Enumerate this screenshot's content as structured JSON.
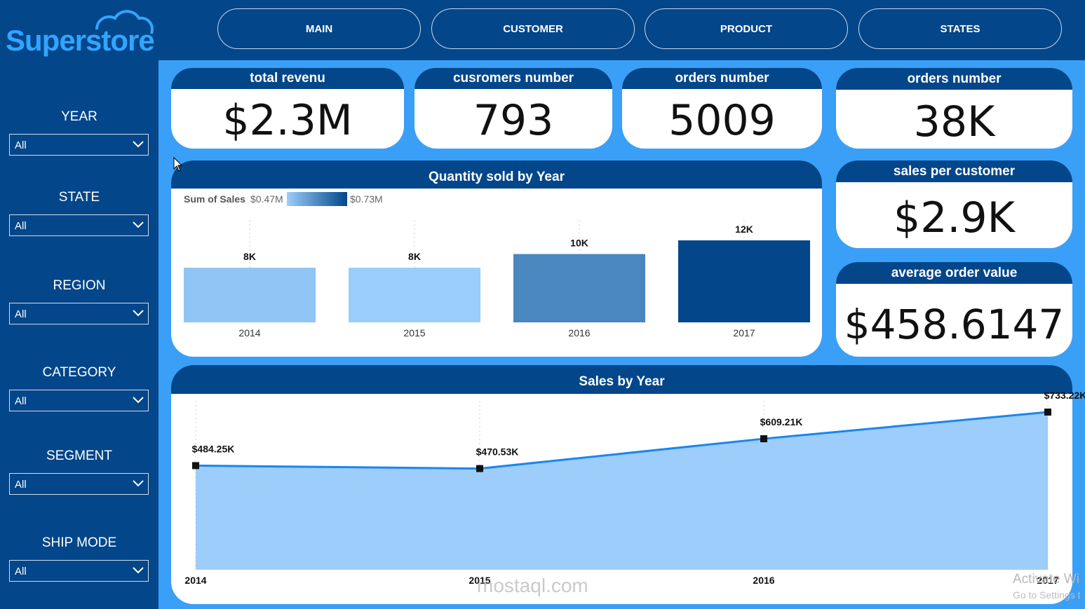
{
  "brand": {
    "name": "Superstore"
  },
  "nav": [
    {
      "label": "MAIN"
    },
    {
      "label": "CUSTOMER"
    },
    {
      "label": "PRODUCT"
    },
    {
      "label": "STATES"
    }
  ],
  "filters": [
    {
      "label": "YEAR",
      "value": "All"
    },
    {
      "label": "STATE",
      "value": "All"
    },
    {
      "label": "REGION",
      "value": "All"
    },
    {
      "label": "CATEGORY",
      "value": "All"
    },
    {
      "label": "SEGMENT",
      "value": "All"
    },
    {
      "label": "SHIP MODE",
      "value": "All"
    }
  ],
  "kpis": {
    "revenue": {
      "title": "total revenu",
      "value": "$2.3M"
    },
    "customers": {
      "title": "cusromers number",
      "value": "793"
    },
    "orders": {
      "title": "orders number",
      "value": "5009"
    },
    "orders2": {
      "title": "orders number",
      "value": "38K"
    },
    "spc": {
      "title": "sales per customer",
      "value": "$2.9K"
    },
    "aov": {
      "title": "average order value",
      "value": "$458.6147"
    }
  },
  "colors": {
    "dark": "#03468a",
    "accent": "#3a9ff6",
    "line": "#1a86f0",
    "area": "#9ccdfb"
  },
  "watermark": {
    "logo": "mostaql.com",
    "line1": "Activate Wi",
    "line2": "Go to Settings t"
  },
  "chart_data": [
    {
      "type": "bar",
      "title": "Quantity sold by Year",
      "legend": {
        "label": "Sum of Sales",
        "min": "$0.47M",
        "max": "$0.73M"
      },
      "categories": [
        "2014",
        "2015",
        "2016",
        "2017"
      ],
      "values": [
        8000,
        8000,
        10000,
        12000
      ],
      "value_labels": [
        "8K",
        "8K",
        "10K",
        "12K"
      ],
      "bar_colors": [
        "#90c4f5",
        "#9bcdfa",
        "#4a86bf",
        "#03468a"
      ],
      "ylim": [
        0,
        12000
      ]
    },
    {
      "type": "area",
      "title": "Sales by Year",
      "x": [
        "2014",
        "2015",
        "2016",
        "2017"
      ],
      "values": [
        484250,
        470530,
        609210,
        733220
      ],
      "value_labels": [
        "$484.25K",
        "$470.53K",
        "$609.21K",
        "$733.22K"
      ],
      "ylim": [
        0,
        733220
      ]
    }
  ]
}
